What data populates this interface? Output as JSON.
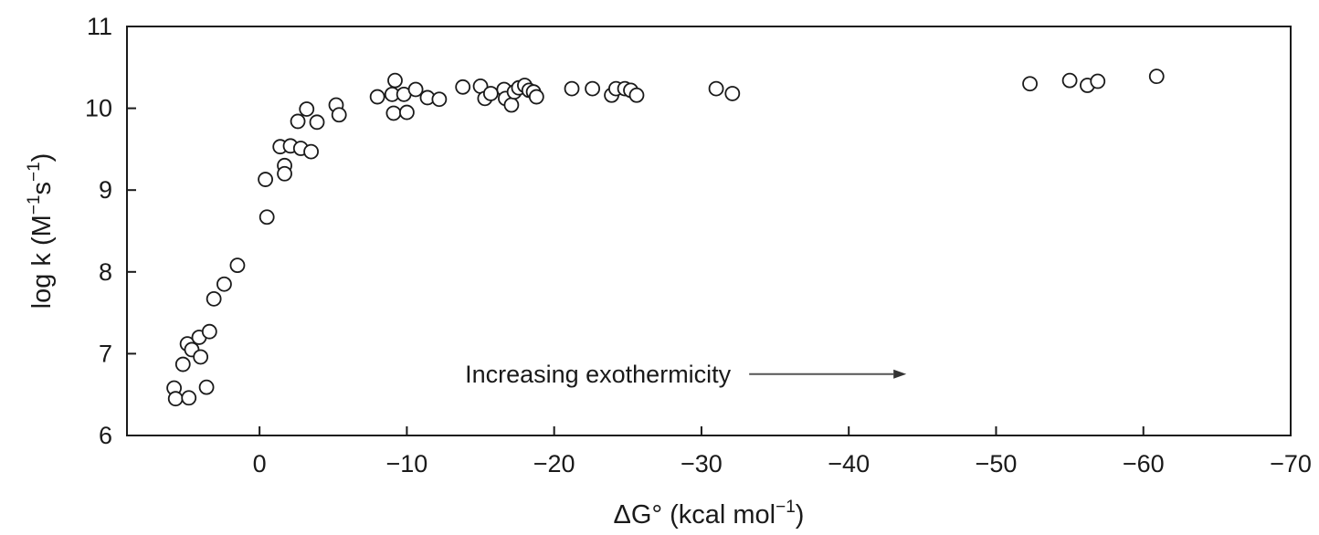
{
  "chart_data": {
    "type": "scatter",
    "xlabel": {
      "prefix": "ΔG° (kcal mol",
      "sup": "−1",
      "suffix": ")"
    },
    "ylabel": {
      "prefix": "log k (M",
      "sup1": "−1",
      "mid": "s",
      "sup2": "−1",
      "suffix": ")"
    },
    "xlim": [
      9,
      -70
    ],
    "ylim": [
      6,
      11
    ],
    "x_ticks": [
      0,
      -10,
      -20,
      -30,
      -40,
      -50,
      -60,
      -70
    ],
    "x_tick_labels": [
      "0",
      "−10",
      "−20",
      "−30",
      "−40",
      "−50",
      "−60",
      "−70"
    ],
    "y_ticks": [
      6,
      7,
      8,
      9,
      10,
      11
    ],
    "y_tick_labels": [
      "6",
      "7",
      "8",
      "9",
      "10",
      "11"
    ],
    "grid": false,
    "marker": "open-circle",
    "annotation": {
      "text": "Increasing exothermicity",
      "arrow": "right",
      "x": -32,
      "y": 6.75
    },
    "points": [
      {
        "x": 5.8,
        "y": 6.58
      },
      {
        "x": 5.7,
        "y": 6.45
      },
      {
        "x": 4.8,
        "y": 6.46
      },
      {
        "x": 3.6,
        "y": 6.59
      },
      {
        "x": 5.2,
        "y": 6.87
      },
      {
        "x": 4.9,
        "y": 7.12
      },
      {
        "x": 4.6,
        "y": 7.05
      },
      {
        "x": 4.1,
        "y": 7.2
      },
      {
        "x": 4.0,
        "y": 6.96
      },
      {
        "x": 3.4,
        "y": 7.27
      },
      {
        "x": 3.1,
        "y": 7.67
      },
      {
        "x": 2.4,
        "y": 7.85
      },
      {
        "x": 1.5,
        "y": 8.08
      },
      {
        "x": -0.4,
        "y": 9.13
      },
      {
        "x": -0.5,
        "y": 8.67
      },
      {
        "x": -1.4,
        "y": 9.53
      },
      {
        "x": -1.7,
        "y": 9.3
      },
      {
        "x": -1.7,
        "y": 9.2
      },
      {
        "x": -2.1,
        "y": 9.54
      },
      {
        "x": -2.6,
        "y": 9.84
      },
      {
        "x": -2.8,
        "y": 9.51
      },
      {
        "x": -3.2,
        "y": 9.99
      },
      {
        "x": -3.5,
        "y": 9.47
      },
      {
        "x": -3.9,
        "y": 9.83
      },
      {
        "x": -5.2,
        "y": 10.04
      },
      {
        "x": -5.4,
        "y": 9.92
      },
      {
        "x": -8.0,
        "y": 10.14
      },
      {
        "x": -9.0,
        "y": 10.17
      },
      {
        "x": -9.2,
        "y": 10.34
      },
      {
        "x": -9.1,
        "y": 9.94
      },
      {
        "x": -9.8,
        "y": 10.17
      },
      {
        "x": -10.0,
        "y": 9.95
      },
      {
        "x": -10.6,
        "y": 10.23
      },
      {
        "x": -11.4,
        "y": 10.13
      },
      {
        "x": -12.2,
        "y": 10.11
      },
      {
        "x": -13.8,
        "y": 10.26
      },
      {
        "x": -15.0,
        "y": 10.27
      },
      {
        "x": -15.3,
        "y": 10.12
      },
      {
        "x": -15.7,
        "y": 10.18
      },
      {
        "x": -16.6,
        "y": 10.23
      },
      {
        "x": -16.7,
        "y": 10.12
      },
      {
        "x": -17.1,
        "y": 10.04
      },
      {
        "x": -17.3,
        "y": 10.2
      },
      {
        "x": -17.6,
        "y": 10.25
      },
      {
        "x": -18.0,
        "y": 10.28
      },
      {
        "x": -18.3,
        "y": 10.22
      },
      {
        "x": -18.6,
        "y": 10.2
      },
      {
        "x": -18.8,
        "y": 10.14
      },
      {
        "x": -21.2,
        "y": 10.24
      },
      {
        "x": -22.6,
        "y": 10.24
      },
      {
        "x": -23.9,
        "y": 10.16
      },
      {
        "x": -24.2,
        "y": 10.24
      },
      {
        "x": -24.8,
        "y": 10.24
      },
      {
        "x": -25.2,
        "y": 10.22
      },
      {
        "x": -25.6,
        "y": 10.16
      },
      {
        "x": -31.0,
        "y": 10.24
      },
      {
        "x": -32.1,
        "y": 10.18
      },
      {
        "x": -52.3,
        "y": 10.3
      },
      {
        "x": -55.0,
        "y": 10.34
      },
      {
        "x": -56.2,
        "y": 10.28
      },
      {
        "x": -56.9,
        "y": 10.33
      },
      {
        "x": -60.9,
        "y": 10.39
      }
    ]
  }
}
